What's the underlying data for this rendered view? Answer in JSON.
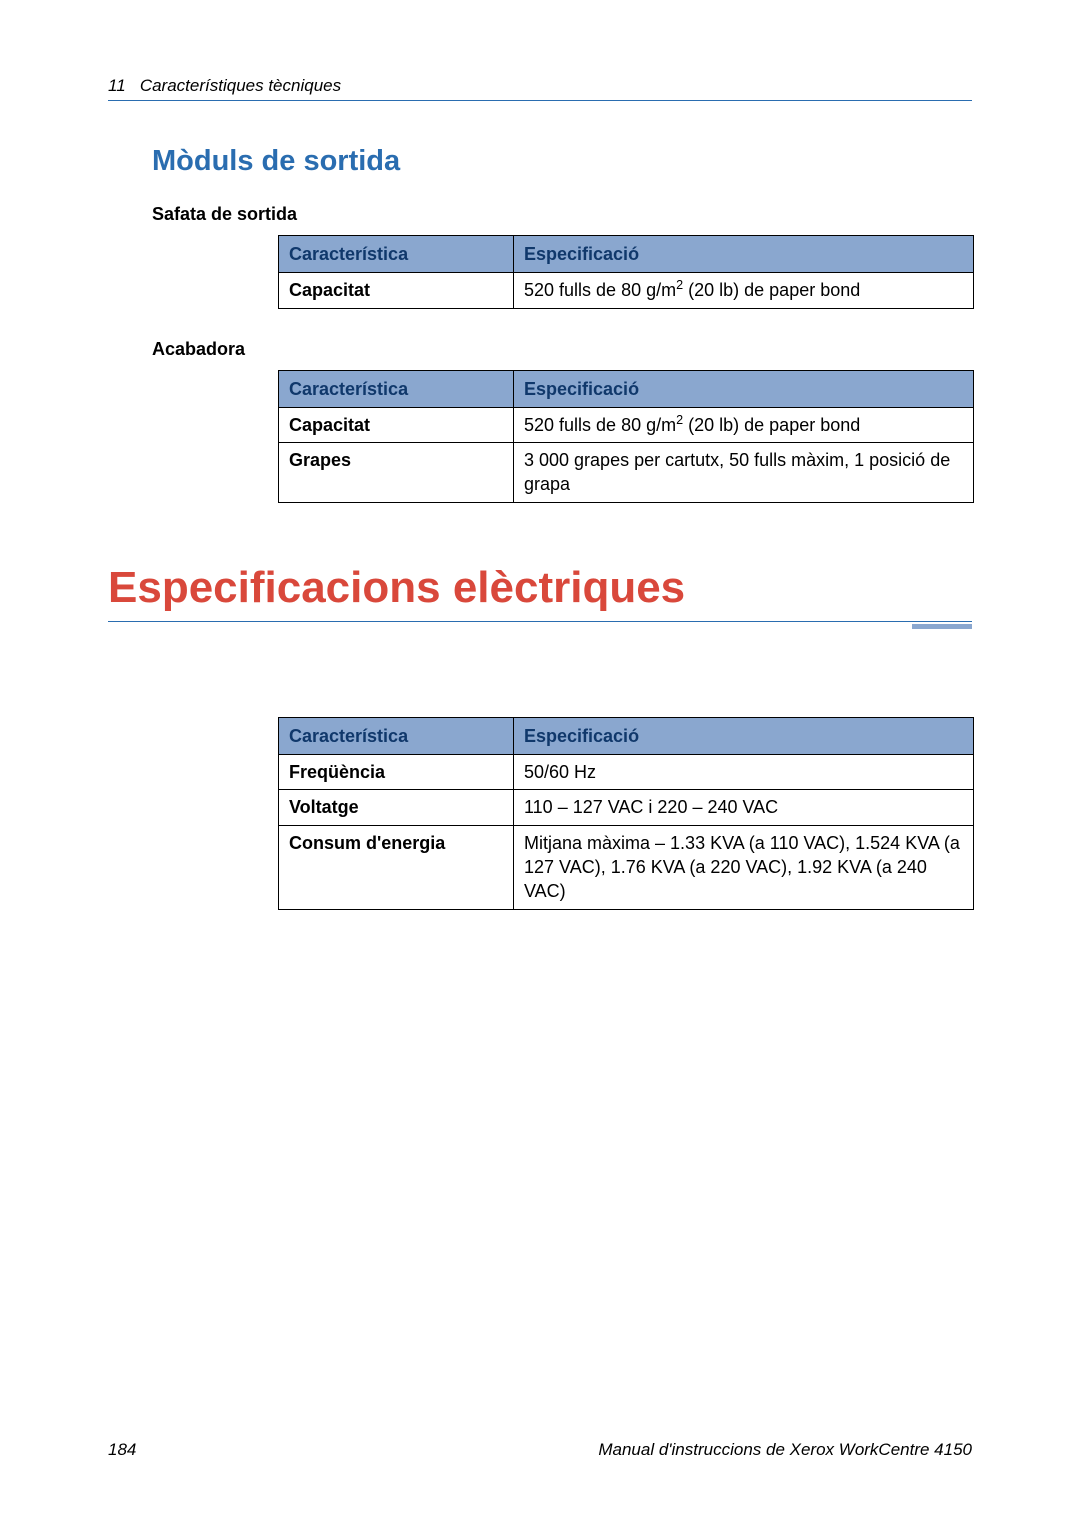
{
  "colors": {
    "header_rule": "#2a6db0",
    "h2_color": "#2a6db0",
    "table_header_bg": "#8aa7cf",
    "table_header_text": "#10386b",
    "big_heading_color": "#d9483b",
    "big_rule_thin": "#2a6db0",
    "big_rule_thick": "#8aa7cf"
  },
  "header": {
    "chapter_num": "11",
    "chapter_title": "Característiques tècniques"
  },
  "section1": {
    "title": "Mòduls de sortida",
    "sub1": {
      "title": "Safata de sortida",
      "table": {
        "headers": [
          "Característica",
          "Especificació"
        ],
        "rows": [
          {
            "c1": "Capacitat",
            "c2_html": "520 fulls de 80 g/m<sup>2</sup> (20 lb) de paper bond"
          }
        ]
      }
    },
    "sub2": {
      "title": "Acabadora",
      "table": {
        "headers": [
          "Característica",
          "Especificació"
        ],
        "rows": [
          {
            "c1": "Capacitat",
            "c2_html": "520 fulls de 80 g/m<sup>2</sup> (20 lb) de paper bond"
          },
          {
            "c1": "Grapes",
            "c2_html": "3 000 grapes per cartutx, 50 fulls màxim, 1 posició de grapa"
          }
        ]
      }
    }
  },
  "section2": {
    "title": "Especificacions elèctriques",
    "table": {
      "headers": [
        "Característica",
        "Especificació"
      ],
      "rows": [
        {
          "c1": "Freqüència",
          "c2_html": "50/60 Hz"
        },
        {
          "c1": "Voltatge",
          "c2_html": "110 – 127 VAC i 220 – 240 VAC"
        },
        {
          "c1": "Consum d'energia",
          "c2_html": "Mitjana màxima – 1.33 KVA (a 110 VAC), 1.524 KVA (a 127 VAC), 1.76 KVA (a 220 VAC), 1.92 KVA (a 240 VAC)"
        }
      ]
    }
  },
  "footer": {
    "page_number": "184",
    "manual_title": "Manual d'instruccions de  Xerox WorkCentre 4150"
  }
}
